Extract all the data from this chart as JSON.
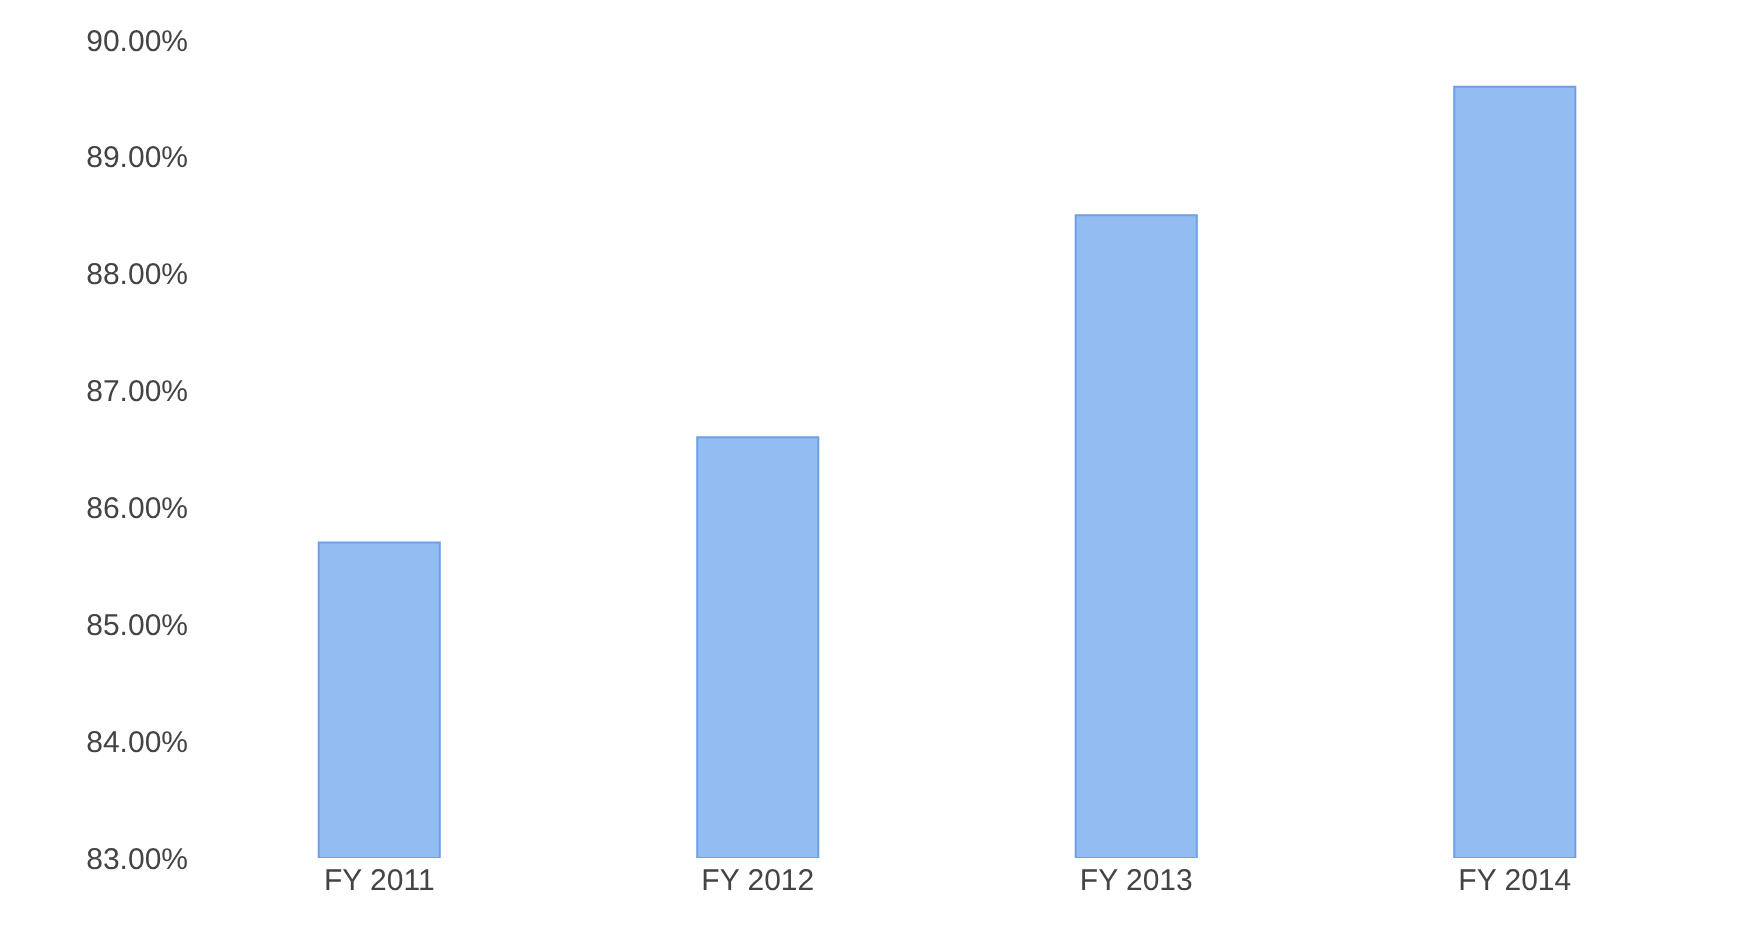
{
  "chart_data": {
    "type": "bar",
    "categories": [
      "FY 2011",
      "FY 2012",
      "FY 2013",
      "FY 2014"
    ],
    "values": [
      85.7,
      86.6,
      88.5,
      89.6
    ],
    "color": "#93bcf3",
    "ylim": [
      83,
      90
    ],
    "yticks": [
      {
        "value": 83,
        "label": "83.00%"
      },
      {
        "value": 84,
        "label": "84.00%"
      },
      {
        "value": 85,
        "label": "85.00%"
      },
      {
        "value": 86,
        "label": "86.00%"
      },
      {
        "value": 87,
        "label": "87.00%"
      },
      {
        "value": 88,
        "label": "88.00%"
      },
      {
        "value": 89,
        "label": "89.00%"
      },
      {
        "value": 90,
        "label": "90.00%"
      }
    ],
    "data_labels": false
  }
}
